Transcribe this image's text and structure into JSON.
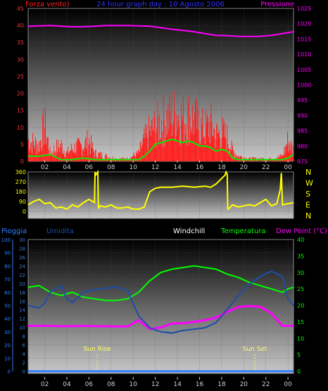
{
  "colors": {
    "wind": "#ff2020",
    "gust": "#00ee00",
    "pressure": "#ff00ff",
    "title": "#3030ff",
    "direction": "#ffff00",
    "rain": "#2f7fff",
    "humidity": "#1c4ea8",
    "temperature": "#00ff00",
    "dewpoint": "#ff00ff",
    "windchill": "#ffffff",
    "sun": "#ffff66",
    "left_axis_top": "#ff3030",
    "right_axis_top": "#ff00ff",
    "left_axis_bottom1": "#2f7fff",
    "left_axis_bottom2": "#3a7bd5",
    "right_axis_bottom": "#00ff00"
  },
  "chart_data": [
    {
      "type": "line",
      "title": "24 hour graph day : 10 Agosto 2006",
      "left_label": "Forza vento)",
      "right_label": "Pressione",
      "x_ticks": [
        "02",
        "04",
        "06",
        "08",
        "10",
        "12",
        "14",
        "16",
        "18",
        "20",
        "22",
        "00"
      ],
      "left_ylim": [
        0,
        45
      ],
      "left_ticks": [
        0,
        5,
        10,
        15,
        20,
        25,
        30,
        35,
        40,
        45
      ],
      "right_ylim": [
        975,
        1025
      ],
      "right_ticks": [
        975,
        980,
        985,
        990,
        995,
        1000,
        1005,
        1010,
        1015,
        1020,
        1025
      ],
      "series": [
        {
          "key": "pressure",
          "axis": "right",
          "x": [
            0,
            1,
            2,
            3,
            4,
            5,
            6,
            7,
            8,
            9,
            10,
            11,
            12,
            13,
            14,
            15,
            16,
            17,
            18,
            19,
            20,
            21,
            22,
            23,
            24
          ],
          "values": [
            1019.2,
            1019.3,
            1019.4,
            1019.2,
            1019.0,
            1019.0,
            1019.2,
            1019.4,
            1019.4,
            1019.4,
            1019.3,
            1019.2,
            1018.7,
            1018.2,
            1017.8,
            1017.4,
            1016.8,
            1016.2,
            1016.1,
            1015.9,
            1015.8,
            1015.9,
            1016.2,
            1016.8,
            1017.4
          ]
        },
        {
          "key": "gust",
          "axis": "left",
          "x": [
            0,
            1,
            2,
            3,
            4,
            5,
            6,
            7,
            8,
            9,
            10,
            10.5,
            11,
            11.5,
            12,
            12.5,
            13,
            13.5,
            14,
            14.5,
            15,
            15.5,
            16,
            16.5,
            17,
            17.5,
            18,
            18.5,
            19,
            20,
            21,
            22,
            23,
            23.5,
            24
          ],
          "values": [
            1.5,
            1.5,
            2.0,
            0.5,
            0.5,
            1.0,
            0.5,
            0.5,
            0.5,
            0.5,
            0.5,
            1.5,
            3.0,
            5.0,
            5.5,
            6.0,
            6.5,
            6.0,
            5.5,
            6.0,
            5.5,
            4.5,
            4.5,
            4.0,
            3.0,
            3.5,
            3.0,
            1.0,
            0.5,
            0.5,
            0.5,
            0.5,
            0.5,
            1.0,
            2.0
          ]
        }
      ],
      "wind_bars": [
        {
          "x": [
            0,
            1,
            1.5,
            2,
            2.5,
            3,
            3.5,
            4,
            5,
            5.5,
            6,
            7,
            8,
            9,
            10,
            10.5,
            11,
            11.5,
            12,
            12.5,
            13,
            13.5,
            14,
            14.5,
            15,
            15.5,
            16,
            16.5,
            17,
            17.5,
            18,
            18.5,
            19,
            20,
            21,
            22,
            23,
            23.5,
            24
          ]
        },
        {
          "values": [
            8,
            6,
            14,
            3,
            5,
            6,
            3,
            5,
            6,
            8,
            3,
            2,
            1,
            1,
            3,
            8,
            11,
            13,
            15,
            16,
            17,
            18,
            16,
            17,
            16,
            13,
            12,
            14,
            10,
            11,
            9,
            4,
            2,
            1,
            1,
            1,
            2,
            8,
            4
          ]
        }
      ]
    },
    {
      "type": "line",
      "left_ylim": [
        0,
        360
      ],
      "left_ticks": [
        0,
        90,
        180,
        270,
        360
      ],
      "compass": [
        "N",
        "W",
        "S",
        "E",
        "N"
      ],
      "x_ticks": [
        "02",
        "04",
        "06",
        "08",
        "10",
        "12",
        "14",
        "16",
        "18",
        "20",
        "22",
        "00"
      ],
      "series": [
        {
          "key": "direction",
          "axis": "left",
          "x": [
            0,
            0.5,
            1,
            1.5,
            2,
            2.5,
            3,
            3.5,
            4,
            4.5,
            5,
            5.5,
            6,
            6.05,
            6.1,
            6.3,
            6.35,
            6.4,
            6.5,
            7,
            7.5,
            8,
            8.5,
            9,
            9.5,
            10,
            10.5,
            11,
            11.5,
            12,
            13,
            14,
            15,
            16,
            16.5,
            17,
            17.5,
            17.8,
            17.9,
            18,
            18.05,
            18.1,
            18.5,
            19,
            19.5,
            20,
            20.5,
            21,
            21.5,
            22,
            22.5,
            22.8,
            22.9,
            23,
            23.5,
            24
          ],
          "values": [
            60,
            90,
            110,
            70,
            80,
            30,
            40,
            20,
            60,
            40,
            80,
            110,
            80,
            360,
            330,
            360,
            40,
            30,
            50,
            40,
            60,
            30,
            30,
            40,
            20,
            20,
            40,
            180,
            210,
            220,
            220,
            230,
            220,
            230,
            220,
            250,
            300,
            330,
            360,
            340,
            30,
            20,
            60,
            40,
            50,
            60,
            50,
            80,
            110,
            50,
            70,
            200,
            350,
            60,
            70,
            80
          ]
        }
      ]
    },
    {
      "type": "line",
      "labels": [
        "Pioggia",
        "Umidita",
        "Windchill",
        "Temperatura",
        "Dew Point (°C)"
      ],
      "left1_ylim": [
        0,
        100
      ],
      "left1_ticks": [
        0,
        10,
        20,
        30,
        40,
        50,
        60,
        70,
        80,
        90,
        100
      ],
      "left2_ylim": [
        0,
        30
      ],
      "left2_ticks": [
        0,
        2,
        4,
        6,
        8,
        10,
        12,
        14,
        16,
        18,
        20,
        22,
        24,
        26,
        28,
        30
      ],
      "right_ylim": [
        0,
        40
      ],
      "right_ticks": [
        0,
        5,
        10,
        15,
        20,
        25,
        30,
        35,
        40
      ],
      "x_ticks": [
        "02",
        "04",
        "06",
        "08",
        "10",
        "12",
        "14",
        "16",
        "18",
        "20",
        "22",
        "00"
      ],
      "annotations": [
        {
          "text": "Sun Rise",
          "x": 6.25
        },
        {
          "text": "Sun Set",
          "x": 20.5
        }
      ],
      "series": [
        {
          "key": "temperature",
          "axis": "right",
          "x": [
            0,
            1,
            2,
            3,
            4,
            5,
            6,
            7,
            8,
            9,
            10,
            11,
            12,
            13,
            14,
            15,
            16,
            17,
            18,
            19,
            20,
            21,
            22,
            23,
            23.5,
            24
          ],
          "values": [
            25.5,
            26,
            24,
            23,
            24,
            22.5,
            22,
            21.5,
            21.5,
            22,
            24,
            27.5,
            30,
            31,
            31.5,
            32,
            31.5,
            31,
            29.5,
            28.5,
            27,
            26,
            25,
            24,
            25,
            25.5
          ]
        },
        {
          "key": "humidity",
          "axis": "left1",
          "x": [
            0,
            1,
            1.5,
            2,
            3,
            3.5,
            4,
            5,
            6,
            7,
            8,
            9,
            10,
            11,
            12,
            13,
            14,
            15,
            16,
            17,
            18,
            19,
            20,
            21,
            22,
            23,
            23.5,
            24
          ],
          "values": [
            50,
            48,
            52,
            60,
            65,
            55,
            52,
            60,
            62,
            63,
            64,
            61,
            42,
            33,
            30,
            29,
            31,
            32,
            33,
            37,
            47,
            57,
            66,
            72,
            76,
            72,
            55,
            50
          ]
        },
        {
          "key": "dewpoint",
          "axis": "right",
          "x": [
            0,
            1,
            2,
            3,
            4,
            5,
            6,
            7,
            8,
            9,
            10,
            11,
            12,
            13,
            14,
            15,
            16,
            17,
            18,
            19,
            20,
            21,
            22,
            23,
            24
          ],
          "values": [
            13.8,
            13.8,
            13.8,
            13.7,
            13.7,
            13.8,
            13.7,
            13.7,
            13.6,
            13.6,
            15.5,
            12.8,
            13.3,
            14.5,
            14.6,
            15,
            15.5,
            16.3,
            18,
            19.5,
            19.8,
            19.6,
            17.6,
            13.8,
            13.8
          ]
        },
        {
          "key": "rain",
          "axis": "left1",
          "x": [
            0,
            24
          ],
          "values": [
            0,
            0
          ]
        }
      ]
    }
  ]
}
